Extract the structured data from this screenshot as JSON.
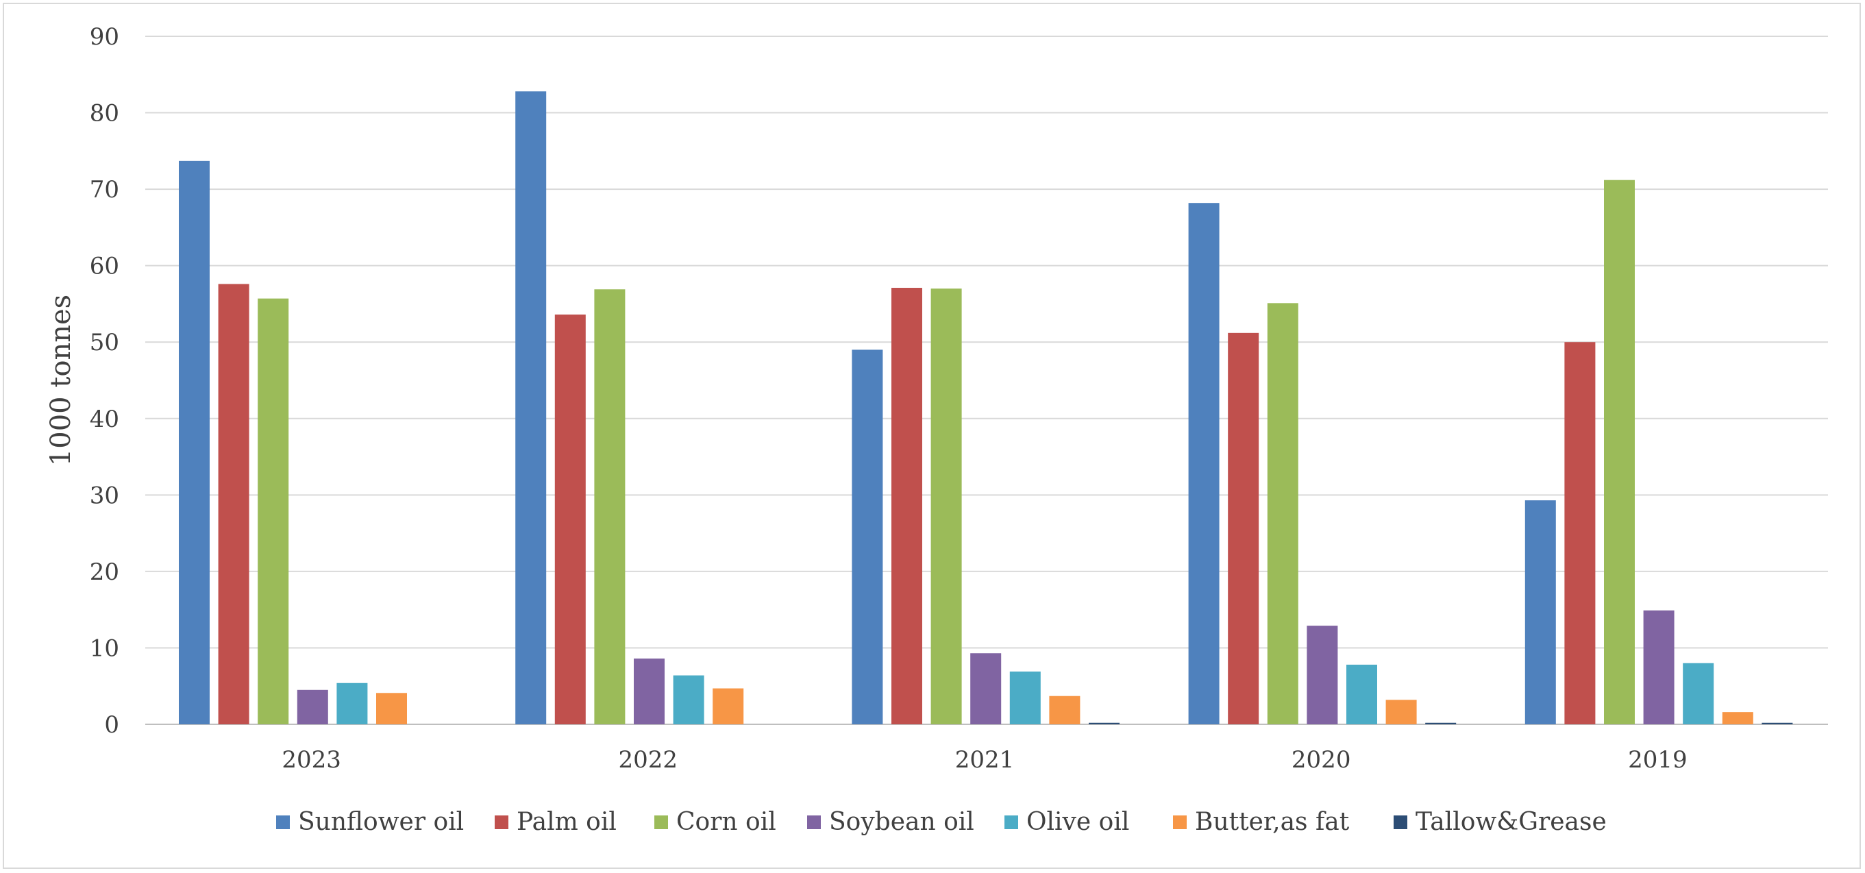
{
  "chart_data": {
    "type": "bar",
    "ylabel": "1000 tonnes",
    "ylim": [
      0,
      90
    ],
    "yticks": [
      0,
      10,
      20,
      30,
      40,
      50,
      60,
      70,
      80,
      90
    ],
    "grid": true,
    "legend_position": "bottom",
    "categories": [
      "2023",
      "2022",
      "2021",
      "2020",
      "2019"
    ],
    "series": [
      {
        "name": "Sunflower oil",
        "color": "#4F81BD",
        "values": [
          73.7,
          82.8,
          49.0,
          68.2,
          29.3
        ]
      },
      {
        "name": "Palm oil",
        "color": "#C0504D",
        "values": [
          57.6,
          53.6,
          57.1,
          51.2,
          50.0
        ]
      },
      {
        "name": "Corn oil",
        "color": "#9BBB59",
        "values": [
          55.7,
          56.9,
          57.0,
          55.1,
          71.2
        ]
      },
      {
        "name": "Soybean oil",
        "color": "#8064A2",
        "values": [
          4.5,
          8.6,
          9.3,
          12.9,
          14.9
        ]
      },
      {
        "name": "Olive oil",
        "color": "#4BACC6",
        "values": [
          5.4,
          6.4,
          6.9,
          7.8,
          8.0
        ]
      },
      {
        "name": "Butter,as fat",
        "color": "#F79646",
        "values": [
          4.1,
          4.7,
          3.7,
          3.2,
          1.6
        ]
      },
      {
        "name": "Tallow&Grease",
        "color": "#2C4D75",
        "values": [
          0.0,
          0.0,
          0.2,
          0.2,
          0.2
        ]
      }
    ]
  }
}
